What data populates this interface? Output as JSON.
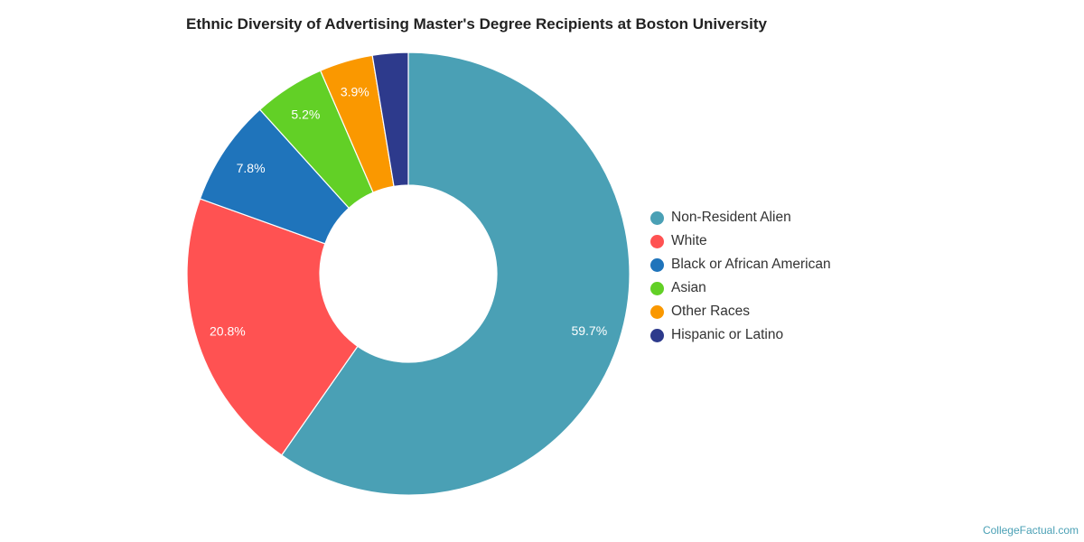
{
  "chart_data": {
    "type": "pie",
    "donut": true,
    "title": "Ethnic Diversity of Advertising Master's Degree Recipients at Boston University",
    "categories": [
      "Non-Resident Alien",
      "White",
      "Black or African American",
      "Asian",
      "Other Races",
      "Hispanic or Latino"
    ],
    "values": [
      59.7,
      20.8,
      7.8,
      5.2,
      3.9,
      2.6
    ],
    "labels": [
      "59.7%",
      "20.8%",
      "7.8%",
      "5.2%",
      "3.9%",
      ""
    ],
    "colors": [
      "#4aa0b5",
      "#ff5252",
      "#1f74bb",
      "#62d026",
      "#fa9800",
      "#2d3a8c"
    ],
    "legend_position": "right"
  },
  "watermark": "CollegeFactual.com"
}
